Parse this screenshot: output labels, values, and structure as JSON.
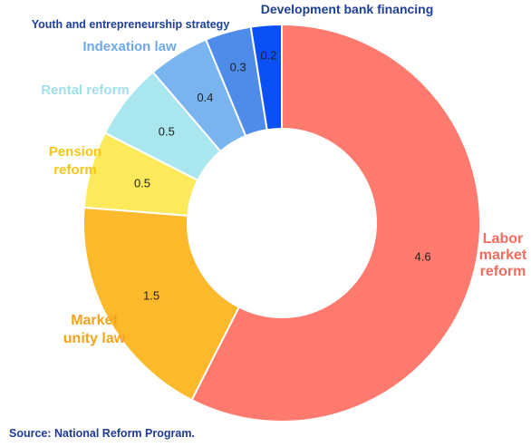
{
  "chart_data": {
    "type": "pie",
    "variant": "donut",
    "title": "",
    "categories": [
      "Labor market reform",
      "Market unity law",
      "Pension reform",
      "Rental reform",
      "Indexation law",
      "Youth and entrepreneurship strategy",
      "Development bank financing"
    ],
    "values": [
      4.6,
      1.5,
      0.5,
      0.5,
      0.4,
      0.3,
      0.2
    ],
    "value_labels": [
      "4.6",
      "1.5",
      "0.5",
      "0.5",
      "0.4",
      "0.3",
      "0.2"
    ],
    "colors": [
      "#ff7a6e",
      "#fdb92c",
      "#fdea5b",
      "#a9e6ee",
      "#79b4f1",
      "#4f8ce9",
      "#0a50f5"
    ],
    "label_colors": [
      "#f26c5f",
      "#f2a41c",
      "#f5c518",
      "#9fe0ea",
      "#6fa8e8",
      "#1c3f9a",
      "#1c3f9a"
    ],
    "label_lines": [
      [
        "Labor",
        "market",
        "reform"
      ],
      [
        "Market",
        "unity law"
      ],
      [
        "Pension",
        "reform"
      ],
      [
        "Rental reform"
      ],
      [
        "Indexation law"
      ],
      [
        "Youth and entrepreneurship strategy"
      ],
      [
        "Development bank financing"
      ]
    ],
    "legend": "none"
  },
  "source": "Source: National Reform Program."
}
